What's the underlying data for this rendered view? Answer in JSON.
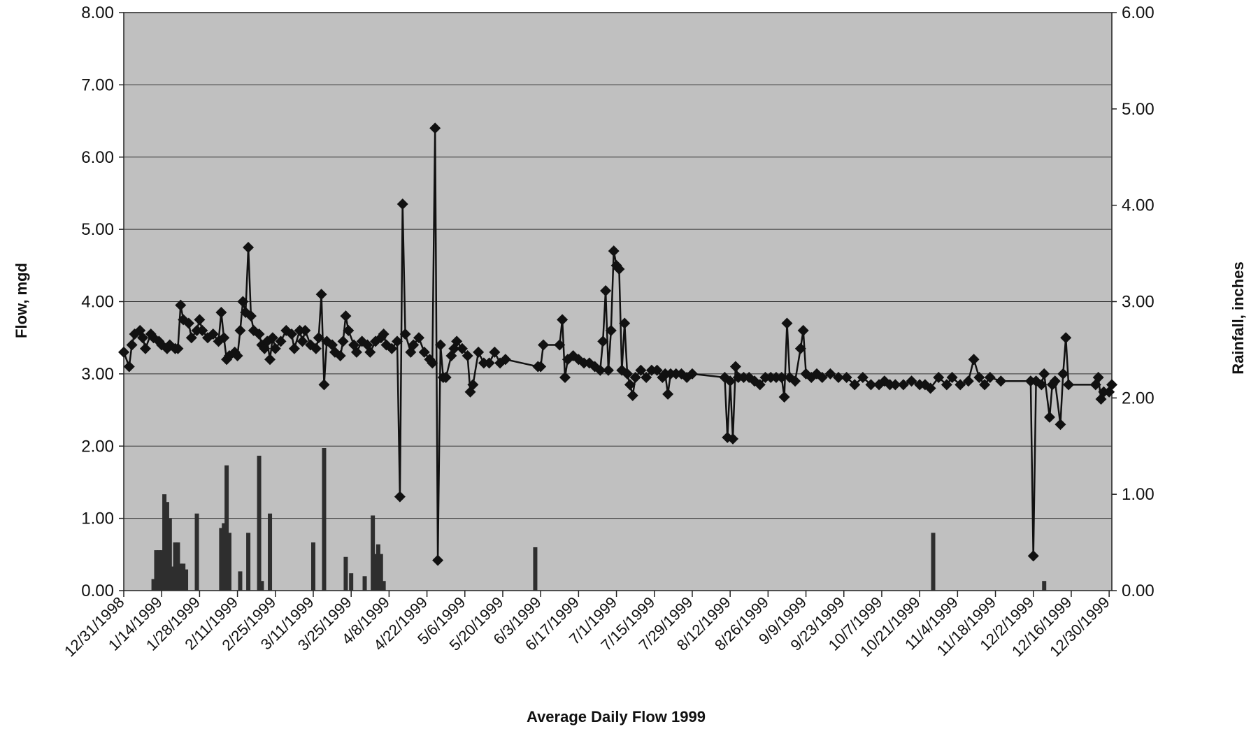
{
  "chart_data": {
    "type": "line",
    "title": "",
    "xlabel": "Average Daily Flow 1999",
    "ylabel": "Flow, mgd",
    "y2label": "Rainfall, inches",
    "ylim": [
      0,
      8
    ],
    "y2lim": [
      0,
      6
    ],
    "yticks": [
      "0.00",
      "1.00",
      "2.00",
      "3.00",
      "4.00",
      "5.00",
      "6.00",
      "7.00",
      "8.00"
    ],
    "y2ticks": [
      "0.00",
      "1.00",
      "2.00",
      "3.00",
      "4.00",
      "5.00",
      "6.00"
    ],
    "xlim": [
      "1998-12-31",
      "1999-12-31"
    ],
    "xticks": [
      "12/31/1998",
      "1/14/1999",
      "1/28/1999",
      "2/11/1999",
      "2/25/1999",
      "3/11/1999",
      "3/25/1999",
      "4/8/1999",
      "4/22/1999",
      "5/6/1999",
      "5/20/1999",
      "6/3/1999",
      "6/17/1999",
      "7/1/1999",
      "7/15/1999",
      "7/29/1999",
      "8/12/1999",
      "8/26/1999",
      "9/9/1999",
      "9/23/1999",
      "10/7/1999",
      "10/21/1999",
      "11/4/1999",
      "11/18/1999",
      "12/2/1999",
      "12/16/1999",
      "12/30/1999"
    ],
    "grid": true,
    "background": "#c0c0c0",
    "series": [
      {
        "axis": "left",
        "style": "line-diamond",
        "color": "#111111",
        "points": [
          [
            "1998-12-31",
            3.3
          ],
          [
            "1999-01-02",
            3.1
          ],
          [
            "1999-01-03",
            3.4
          ],
          [
            "1999-01-04",
            3.55
          ],
          [
            "1999-01-06",
            3.6
          ],
          [
            "1999-01-07",
            3.5
          ],
          [
            "1999-01-08",
            3.35
          ],
          [
            "1999-01-10",
            3.55
          ],
          [
            "1999-01-11",
            3.5
          ],
          [
            "1999-01-13",
            3.45
          ],
          [
            "1999-01-14",
            3.4
          ],
          [
            "1999-01-16",
            3.35
          ],
          [
            "1999-01-17",
            3.4
          ],
          [
            "1999-01-19",
            3.35
          ],
          [
            "1999-01-20",
            3.35
          ],
          [
            "1999-01-21",
            3.95
          ],
          [
            "1999-01-22",
            3.75
          ],
          [
            "1999-01-24",
            3.7
          ],
          [
            "1999-01-25",
            3.5
          ],
          [
            "1999-01-27",
            3.6
          ],
          [
            "1999-01-28",
            3.75
          ],
          [
            "1999-01-29",
            3.6
          ],
          [
            "1999-01-31",
            3.5
          ],
          [
            "1999-02-02",
            3.55
          ],
          [
            "1999-02-04",
            3.45
          ],
          [
            "1999-02-05",
            3.85
          ],
          [
            "1999-02-06",
            3.5
          ],
          [
            "1999-02-07",
            3.2
          ],
          [
            "1999-02-08",
            3.25
          ],
          [
            "1999-02-10",
            3.3
          ],
          [
            "1999-02-11",
            3.25
          ],
          [
            "1999-02-12",
            3.6
          ],
          [
            "1999-02-13",
            4.0
          ],
          [
            "1999-02-14",
            3.85
          ],
          [
            "1999-02-15",
            4.75
          ],
          [
            "1999-02-16",
            3.8
          ],
          [
            "1999-02-17",
            3.6
          ],
          [
            "1999-02-19",
            3.55
          ],
          [
            "1999-02-20",
            3.4
          ],
          [
            "1999-02-21",
            3.35
          ],
          [
            "1999-02-22",
            3.45
          ],
          [
            "1999-02-23",
            3.2
          ],
          [
            "1999-02-24",
            3.5
          ],
          [
            "1999-02-25",
            3.35
          ],
          [
            "1999-02-27",
            3.45
          ],
          [
            "1999-03-01",
            3.6
          ],
          [
            "1999-03-03",
            3.55
          ],
          [
            "1999-03-04",
            3.35
          ],
          [
            "1999-03-06",
            3.6
          ],
          [
            "1999-03-07",
            3.45
          ],
          [
            "1999-03-08",
            3.6
          ],
          [
            "1999-03-10",
            3.4
          ],
          [
            "1999-03-12",
            3.35
          ],
          [
            "1999-03-13",
            3.5
          ],
          [
            "1999-03-14",
            4.1
          ],
          [
            "1999-03-15",
            2.85
          ],
          [
            "1999-03-16",
            3.45
          ],
          [
            "1999-03-18",
            3.4
          ],
          [
            "1999-03-19",
            3.3
          ],
          [
            "1999-03-21",
            3.25
          ],
          [
            "1999-03-22",
            3.45
          ],
          [
            "1999-03-23",
            3.8
          ],
          [
            "1999-03-24",
            3.6
          ],
          [
            "1999-03-26",
            3.4
          ],
          [
            "1999-03-27",
            3.3
          ],
          [
            "1999-03-29",
            3.45
          ],
          [
            "1999-03-31",
            3.4
          ],
          [
            "1999-04-01",
            3.3
          ],
          [
            "1999-04-03",
            3.45
          ],
          [
            "1999-04-05",
            3.5
          ],
          [
            "1999-04-06",
            3.55
          ],
          [
            "1999-04-07",
            3.4
          ],
          [
            "1999-04-09",
            3.35
          ],
          [
            "1999-04-11",
            3.45
          ],
          [
            "1999-04-12",
            1.3
          ],
          [
            "1999-04-13",
            5.35
          ],
          [
            "1999-04-14",
            3.55
          ],
          [
            "1999-04-16",
            3.3
          ],
          [
            "1999-04-17",
            3.4
          ],
          [
            "1999-04-19",
            3.5
          ],
          [
            "1999-04-21",
            3.3
          ],
          [
            "1999-04-23",
            3.2
          ],
          [
            "1999-04-24",
            3.15
          ],
          [
            "1999-04-25",
            6.4
          ],
          [
            "1999-04-26",
            0.42
          ],
          [
            "1999-04-27",
            3.4
          ],
          [
            "1999-04-28",
            2.95
          ],
          [
            "1999-04-29",
            2.95
          ],
          [
            "1999-05-01",
            3.25
          ],
          [
            "1999-05-02",
            3.35
          ],
          [
            "1999-05-03",
            3.45
          ],
          [
            "1999-05-05",
            3.35
          ],
          [
            "1999-05-07",
            3.25
          ],
          [
            "1999-05-08",
            2.75
          ],
          [
            "1999-05-09",
            2.85
          ],
          [
            "1999-05-11",
            3.3
          ],
          [
            "1999-05-13",
            3.15
          ],
          [
            "1999-05-15",
            3.15
          ],
          [
            "1999-05-17",
            3.3
          ],
          [
            "1999-05-19",
            3.15
          ],
          [
            "1999-05-21",
            3.2
          ],
          [
            "1999-06-02",
            3.1
          ],
          [
            "1999-06-03",
            3.1
          ],
          [
            "1999-06-04",
            3.4
          ],
          [
            "1999-06-10",
            3.4
          ],
          [
            "1999-06-11",
            3.75
          ],
          [
            "1999-06-12",
            2.95
          ],
          [
            "1999-06-13",
            3.2
          ],
          [
            "1999-06-15",
            3.25
          ],
          [
            "1999-06-17",
            3.2
          ],
          [
            "1999-06-19",
            3.15
          ],
          [
            "1999-06-21",
            3.15
          ],
          [
            "1999-06-23",
            3.1
          ],
          [
            "1999-06-25",
            3.05
          ],
          [
            "1999-06-26",
            3.45
          ],
          [
            "1999-06-27",
            4.15
          ],
          [
            "1999-06-28",
            3.05
          ],
          [
            "1999-06-29",
            3.6
          ],
          [
            "1999-06-30",
            4.7
          ],
          [
            "1999-07-01",
            4.5
          ],
          [
            "1999-07-02",
            4.45
          ],
          [
            "1999-07-03",
            3.05
          ],
          [
            "1999-07-04",
            3.7
          ],
          [
            "1999-07-05",
            3.0
          ],
          [
            "1999-07-06",
            2.85
          ],
          [
            "1999-07-07",
            2.7
          ],
          [
            "1999-07-08",
            2.95
          ],
          [
            "1999-07-10",
            3.05
          ],
          [
            "1999-07-12",
            2.95
          ],
          [
            "1999-07-14",
            3.05
          ],
          [
            "1999-07-16",
            3.05
          ],
          [
            "1999-07-18",
            2.95
          ],
          [
            "1999-07-19",
            3.0
          ],
          [
            "1999-07-20",
            2.72
          ],
          [
            "1999-07-21",
            3.0
          ],
          [
            "1999-07-23",
            3.0
          ],
          [
            "1999-07-25",
            3.0
          ],
          [
            "1999-07-27",
            2.95
          ],
          [
            "1999-07-29",
            3.0
          ],
          [
            "1999-08-10",
            2.95
          ],
          [
            "1999-08-11",
            2.12
          ],
          [
            "1999-08-12",
            2.9
          ],
          [
            "1999-08-13",
            2.1
          ],
          [
            "1999-08-14",
            3.1
          ],
          [
            "1999-08-15",
            2.95
          ],
          [
            "1999-08-17",
            2.95
          ],
          [
            "1999-08-19",
            2.95
          ],
          [
            "1999-08-21",
            2.9
          ],
          [
            "1999-08-23",
            2.85
          ],
          [
            "1999-08-25",
            2.95
          ],
          [
            "1999-08-27",
            2.95
          ],
          [
            "1999-08-29",
            2.95
          ],
          [
            "1999-08-31",
            2.95
          ],
          [
            "1999-09-01",
            2.68
          ],
          [
            "1999-09-02",
            3.7
          ],
          [
            "1999-09-03",
            2.95
          ],
          [
            "1999-09-05",
            2.9
          ],
          [
            "1999-09-07",
            3.35
          ],
          [
            "1999-09-08",
            3.6
          ],
          [
            "1999-09-09",
            3.0
          ],
          [
            "1999-09-11",
            2.95
          ],
          [
            "1999-09-13",
            3.0
          ],
          [
            "1999-09-15",
            2.95
          ],
          [
            "1999-09-18",
            3.0
          ],
          [
            "1999-09-21",
            2.95
          ],
          [
            "1999-09-24",
            2.95
          ],
          [
            "1999-09-27",
            2.85
          ],
          [
            "1999-09-30",
            2.95
          ],
          [
            "1999-10-03",
            2.85
          ],
          [
            "1999-10-06",
            2.85
          ],
          [
            "1999-10-08",
            2.9
          ],
          [
            "1999-10-10",
            2.85
          ],
          [
            "1999-10-12",
            2.85
          ],
          [
            "1999-10-15",
            2.85
          ],
          [
            "1999-10-18",
            2.9
          ],
          [
            "1999-10-21",
            2.85
          ],
          [
            "1999-10-23",
            2.85
          ],
          [
            "1999-10-25",
            2.8
          ],
          [
            "1999-10-28",
            2.95
          ],
          [
            "1999-10-31",
            2.85
          ],
          [
            "1999-11-02",
            2.95
          ],
          [
            "1999-11-05",
            2.85
          ],
          [
            "1999-11-08",
            2.9
          ],
          [
            "1999-11-10",
            3.2
          ],
          [
            "1999-11-12",
            2.95
          ],
          [
            "1999-11-14",
            2.85
          ],
          [
            "1999-11-16",
            2.95
          ],
          [
            "1999-11-20",
            2.9
          ],
          [
            "1999-12-01",
            2.9
          ],
          [
            "1999-12-02",
            0.48
          ],
          [
            "1999-12-03",
            2.9
          ],
          [
            "1999-12-05",
            2.85
          ],
          [
            "1999-12-06",
            3.0
          ],
          [
            "1999-12-08",
            2.4
          ],
          [
            "1999-12-09",
            2.85
          ],
          [
            "1999-12-10",
            2.9
          ],
          [
            "1999-12-12",
            2.3
          ],
          [
            "1999-12-13",
            3.0
          ],
          [
            "1999-12-14",
            3.5
          ],
          [
            "1999-12-15",
            2.85
          ],
          [
            "1999-12-25",
            2.85
          ],
          [
            "1999-12-26",
            2.95
          ],
          [
            "1999-12-27",
            2.65
          ],
          [
            "1999-12-28",
            2.75
          ],
          [
            "1999-12-30",
            2.75
          ],
          [
            "1999-12-31",
            2.85
          ]
        ]
      },
      {
        "axis": "right",
        "style": "bar",
        "color": "#2e2e2e",
        "points": [
          [
            "1999-01-11",
            0.12
          ],
          [
            "1999-01-12",
            0.42
          ],
          [
            "1999-01-13",
            0.42
          ],
          [
            "1999-01-14",
            0.42
          ],
          [
            "1999-01-15",
            1.0
          ],
          [
            "1999-01-16",
            0.92
          ],
          [
            "1999-01-17",
            0.75
          ],
          [
            "1999-01-18",
            0.25
          ],
          [
            "1999-01-19",
            0.5
          ],
          [
            "1999-01-20",
            0.5
          ],
          [
            "1999-01-21",
            0.28
          ],
          [
            "1999-01-22",
            0.28
          ],
          [
            "1999-01-23",
            0.22
          ],
          [
            "1999-01-27",
            0.8
          ],
          [
            "1999-02-05",
            0.65
          ],
          [
            "1999-02-06",
            0.7
          ],
          [
            "1999-02-07",
            1.3
          ],
          [
            "1999-02-08",
            0.6
          ],
          [
            "1999-02-12",
            0.2
          ],
          [
            "1999-02-15",
            0.6
          ],
          [
            "1999-02-19",
            1.4
          ],
          [
            "1999-02-20",
            0.1
          ],
          [
            "1999-02-23",
            0.8
          ],
          [
            "1999-03-11",
            0.5
          ],
          [
            "1999-03-15",
            1.48
          ],
          [
            "1999-03-23",
            0.35
          ],
          [
            "1999-03-25",
            0.18
          ],
          [
            "1999-03-30",
            0.15
          ],
          [
            "1999-04-02",
            0.78
          ],
          [
            "1999-04-03",
            0.38
          ],
          [
            "1999-04-04",
            0.48
          ],
          [
            "1999-04-05",
            0.38
          ],
          [
            "1999-04-06",
            0.1
          ],
          [
            "1999-06-01",
            0.45
          ],
          [
            "1999-10-26",
            0.6
          ],
          [
            "1999-12-06",
            0.1
          ]
        ]
      }
    ]
  }
}
